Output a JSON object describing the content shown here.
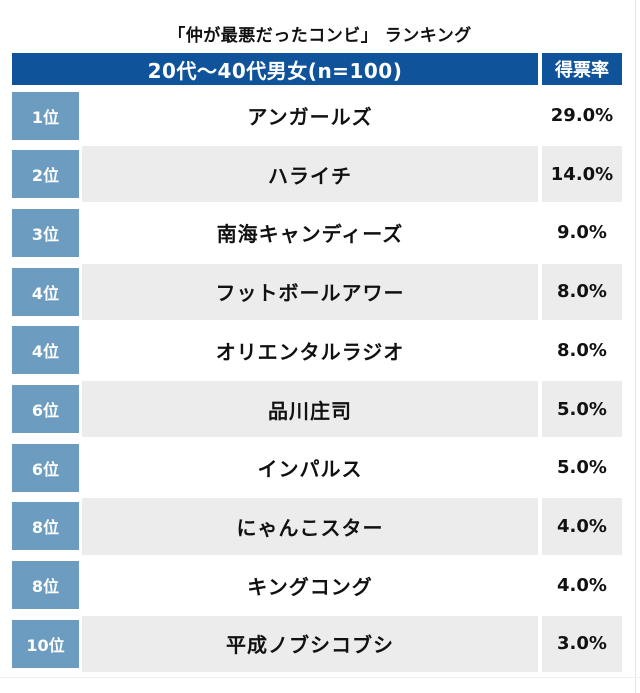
{
  "page": {
    "title": "「仲が最悪だったコンビ」 ランキング"
  },
  "table": {
    "header": {
      "group_label": "20代〜40代男女(n=100)",
      "value_label": "得票率"
    },
    "rows": [
      {
        "rank": "1位",
        "name": "アンガールズ",
        "rate": "29.0%"
      },
      {
        "rank": "2位",
        "name": "ハライチ",
        "rate": "14.0%"
      },
      {
        "rank": "3位",
        "name": "南海キャンディーズ",
        "rate": "9.0%"
      },
      {
        "rank": "4位",
        "name": "フットボールアワー",
        "rate": "8.0%"
      },
      {
        "rank": "4位",
        "name": "オリエンタルラジオ",
        "rate": "8.0%"
      },
      {
        "rank": "6位",
        "name": "品川庄司",
        "rate": "5.0%"
      },
      {
        "rank": "6位",
        "name": "インパルス",
        "rate": "5.0%"
      },
      {
        "rank": "8位",
        "name": "にゃんこスター",
        "rate": "4.0%"
      },
      {
        "rank": "8位",
        "name": "キングコング",
        "rate": "4.0%"
      },
      {
        "rank": "10位",
        "name": "平成ノブシコブシ",
        "rate": "3.0%"
      }
    ]
  },
  "colors": {
    "header_bg": "#0f549b",
    "rank_bg": "#6c9cc0",
    "row_bg": "#ffffff",
    "row_alt_bg": "#ececec",
    "header_text": "#ffffff",
    "body_text": "#111111"
  },
  "chart_data": {
    "type": "table",
    "title": "「仲が最悪だったコンビ」 ランキング",
    "group_header": "20代〜40代男女(n=100)",
    "value_header": "得票率",
    "sample_size": 100,
    "rows": [
      {
        "rank": "1位",
        "name": "アンガールズ",
        "rate_percent": 29.0
      },
      {
        "rank": "2位",
        "name": "ハライチ",
        "rate_percent": 14.0
      },
      {
        "rank": "3位",
        "name": "南海キャンディーズ",
        "rate_percent": 9.0
      },
      {
        "rank": "4位",
        "name": "フットボールアワー",
        "rate_percent": 8.0
      },
      {
        "rank": "4位",
        "name": "オリエンタルラジオ",
        "rate_percent": 8.0
      },
      {
        "rank": "6位",
        "name": "品川庄司",
        "rate_percent": 5.0
      },
      {
        "rank": "6位",
        "name": "インパルス",
        "rate_percent": 5.0
      },
      {
        "rank": "8位",
        "name": "にゃんこスター",
        "rate_percent": 4.0
      },
      {
        "rank": "8位",
        "name": "キングコング",
        "rate_percent": 4.0
      },
      {
        "rank": "10位",
        "name": "平成ノブシコブシ",
        "rate_percent": 3.0
      }
    ]
  }
}
